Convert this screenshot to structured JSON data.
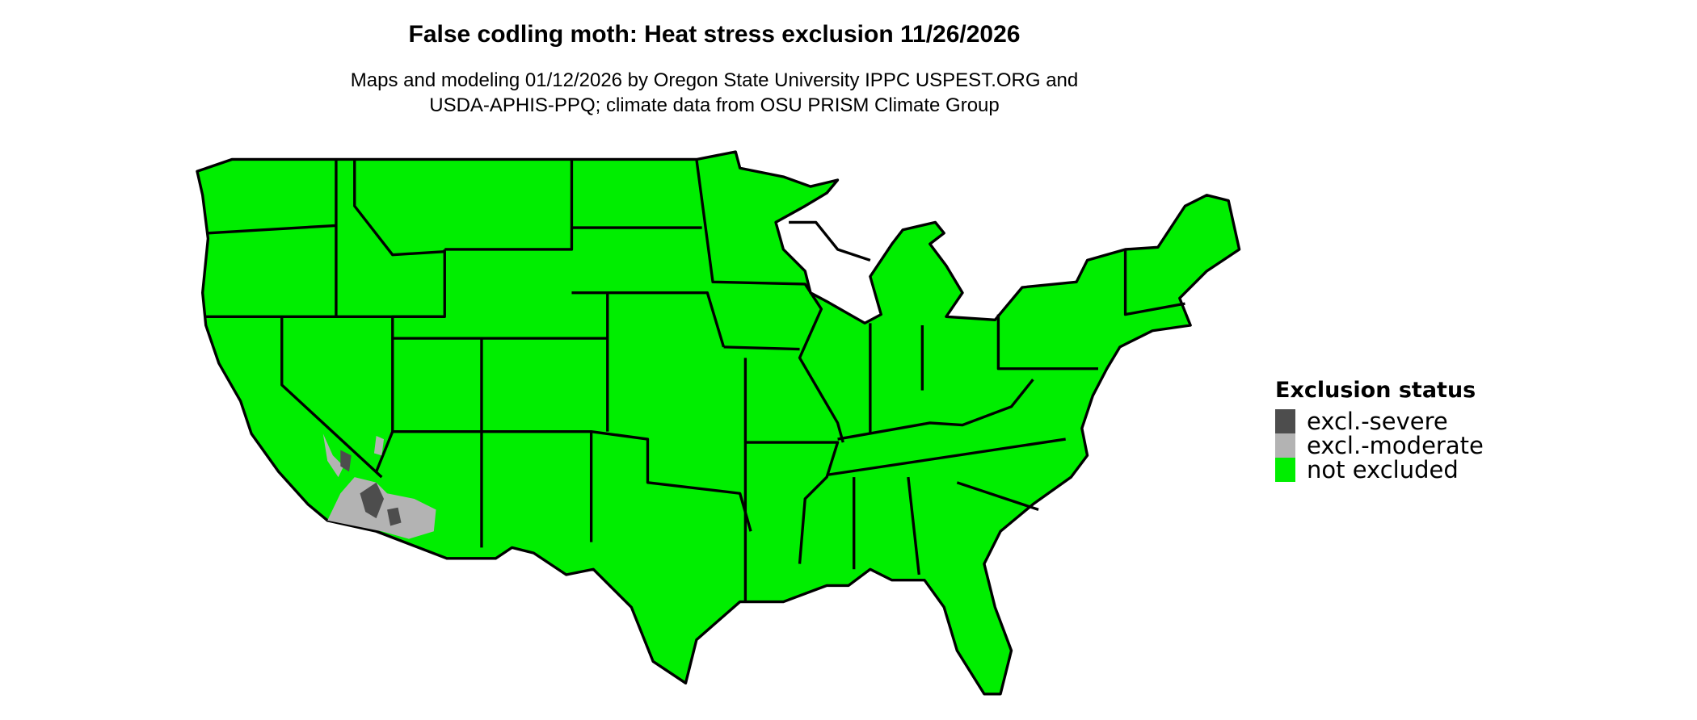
{
  "title": "False codling moth: Heat stress exclusion 11/26/2026",
  "subtitle_line1": "Maps and modeling 01/12/2026 by Oregon State University IPPC USPEST.ORG and",
  "subtitle_line2": "USDA-APHIS-PPQ; climate data from OSU PRISM Climate Group",
  "legend": {
    "title": "Exclusion status",
    "items": [
      {
        "label": "excl.-severe",
        "color": "#4d4d4d"
      },
      {
        "label": "excl.-moderate",
        "color": "#b3b3b3"
      },
      {
        "label": "not excluded",
        "color": "#00ee00"
      }
    ]
  }
}
